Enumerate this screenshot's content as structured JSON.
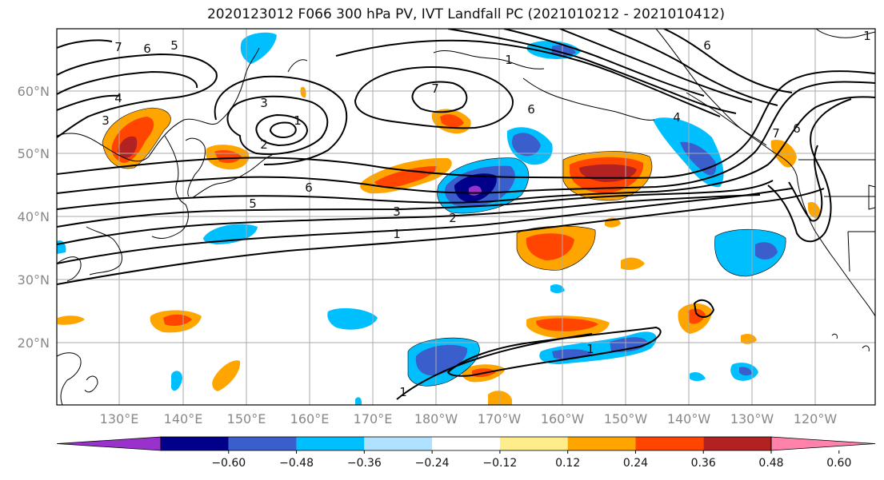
{
  "title": "2020123012 F066 300 hPa PV, IVT Landfall PC (2021010212 - 2021010412)",
  "lat_labels": [
    "60°N",
    "50°N",
    "40°N",
    "30°N",
    "20°N"
  ],
  "lon_labels": [
    "130°E",
    "140°E",
    "150°E",
    "160°E",
    "170°E",
    "180°W",
    "170°W",
    "160°W",
    "150°W",
    "140°W",
    "130°W",
    "120°W"
  ],
  "contour_labels": [
    "7",
    "6",
    "5",
    "4",
    "3",
    "3",
    "2",
    "1",
    "7",
    "6",
    "5",
    "6",
    "3",
    "2",
    "1",
    "1",
    "7",
    "6",
    "6",
    "4",
    "1",
    "1",
    "1"
  ],
  "colorbar": {
    "tick_labels": [
      "−0.60",
      "−0.48",
      "−0.36",
      "−0.24",
      "−0.12",
      "0.12",
      "0.24",
      "0.36",
      "0.48",
      "0.60"
    ],
    "colors": [
      "#9932cc",
      "#00008b",
      "#3a5fcd",
      "#00bfff",
      "#b0e2ff",
      "#ffffff",
      "#ffec8b",
      "#ffa500",
      "#ff4500",
      "#b22222",
      "#ff82ab"
    ]
  }
}
